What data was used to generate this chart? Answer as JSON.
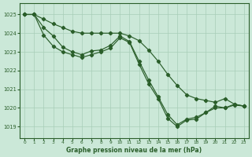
{
  "xlabel": "Graphe pression niveau de la mer (hPa)",
  "bg_color": "#cbe8d8",
  "line_color": "#2a5e2a",
  "grid_color": "#a8cdb8",
  "ylim": [
    1018.4,
    1025.6
  ],
  "xlim": [
    -0.5,
    23.5
  ],
  "yticks": [
    1019,
    1020,
    1021,
    1022,
    1023,
    1024,
    1025
  ],
  "xticks": [
    0,
    1,
    2,
    3,
    4,
    5,
    6,
    7,
    8,
    9,
    10,
    11,
    12,
    13,
    14,
    15,
    16,
    17,
    18,
    19,
    20,
    21,
    22,
    23
  ],
  "series": [
    {
      "x": [
        0,
        1,
        2,
        3,
        4,
        5,
        6,
        7,
        8,
        9,
        10,
        11,
        12,
        13,
        14,
        15,
        16,
        17,
        18,
        19,
        20,
        21,
        22,
        23
      ],
      "y": [
        1025.0,
        1025.0,
        1024.75,
        1024.5,
        1024.3,
        1024.1,
        1024.0,
        1024.0,
        1024.0,
        1024.0,
        1024.0,
        1023.85,
        1023.6,
        1023.1,
        1022.5,
        1021.8,
        1021.2,
        1020.7,
        1020.5,
        1020.4,
        1020.3,
        1020.5,
        1020.2,
        1020.1
      ]
    },
    {
      "x": [
        0,
        1,
        2,
        3,
        4,
        5,
        6,
        7,
        8,
        9,
        10,
        11,
        12,
        13,
        14,
        15,
        16,
        17,
        18,
        19,
        20,
        21,
        22,
        23
      ],
      "y": [
        1025.0,
        1025.0,
        1024.3,
        1023.85,
        1023.25,
        1023.0,
        1022.85,
        1023.05,
        1023.1,
        1023.35,
        1023.85,
        1023.55,
        1022.5,
        1021.5,
        1020.6,
        1019.65,
        1019.1,
        1019.4,
        1019.5,
        1019.75,
        1020.1,
        1020.0,
        1020.2,
        1020.1
      ]
    },
    {
      "x": [
        0,
        1,
        2,
        3,
        4,
        5,
        6,
        7,
        8,
        9,
        10,
        11,
        12,
        13,
        14,
        15,
        16,
        17,
        18,
        19,
        20,
        21,
        22,
        23
      ],
      "y": [
        1025.0,
        1025.0,
        1023.9,
        1023.3,
        1023.0,
        1022.85,
        1022.7,
        1022.85,
        1023.0,
        1023.2,
        1023.75,
        1023.5,
        1022.35,
        1021.3,
        1020.5,
        1019.45,
        1019.0,
        1019.35,
        1019.4,
        1019.75,
        1020.0,
        1020.0,
        1020.15,
        1020.1
      ]
    }
  ]
}
